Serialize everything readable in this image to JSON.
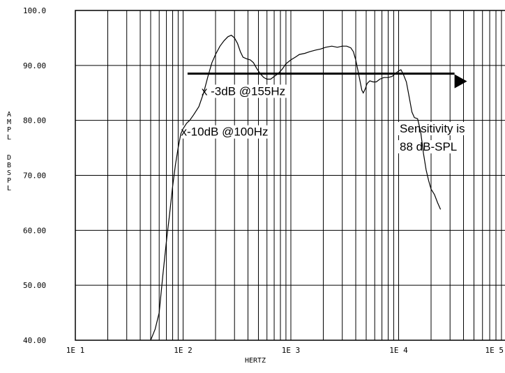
{
  "chart_data": {
    "type": "line",
    "xlabel": "HERTZ",
    "ylabel_lines": [
      "AMPL",
      "DBSPL"
    ],
    "x_scale": "log",
    "xlim": [
      10,
      100000
    ],
    "ylim": [
      40,
      100
    ],
    "grid": true,
    "x_tick_labels": [
      {
        "value": 10,
        "label": "1E 1"
      },
      {
        "value": 100,
        "label": "1E 2"
      },
      {
        "value": 1000,
        "label": "1E 3"
      },
      {
        "value": 10000,
        "label": "1E 4"
      },
      {
        "value": 100000,
        "label": "1E 5"
      }
    ],
    "y_tick_labels": [
      {
        "value": 100,
        "label": "100.0"
      },
      {
        "value": 90,
        "label": "90.00"
      },
      {
        "value": 80,
        "label": "80.00"
      },
      {
        "value": 70,
        "label": "70.00"
      },
      {
        "value": 60,
        "label": "60.00"
      },
      {
        "value": 50,
        "label": "50.00"
      },
      {
        "value": 40,
        "label": "40.00"
      }
    ],
    "series": [
      {
        "color": "#000000",
        "points": [
          [
            50,
            40
          ],
          [
            55,
            42
          ],
          [
            60,
            45
          ],
          [
            65,
            52
          ],
          [
            70,
            58
          ],
          [
            75,
            63
          ],
          [
            80,
            68
          ],
          [
            85,
            72
          ],
          [
            90,
            75
          ],
          [
            95,
            77.5
          ],
          [
            100,
            78.5
          ],
          [
            108,
            79.5
          ],
          [
            115,
            80
          ],
          [
            125,
            81
          ],
          [
            140,
            82.5
          ],
          [
            155,
            85
          ],
          [
            170,
            88
          ],
          [
            185,
            90.5
          ],
          [
            200,
            92
          ],
          [
            220,
            93.5
          ],
          [
            240,
            94.5
          ],
          [
            260,
            95.2
          ],
          [
            280,
            95.5
          ],
          [
            300,
            95
          ],
          [
            320,
            94
          ],
          [
            340,
            92.5
          ],
          [
            360,
            91.5
          ],
          [
            390,
            91.2
          ],
          [
            420,
            91
          ],
          [
            450,
            90.5
          ],
          [
            480,
            89.5
          ],
          [
            520,
            88.5
          ],
          [
            560,
            87.8
          ],
          [
            600,
            87.5
          ],
          [
            650,
            87.5
          ],
          [
            700,
            88
          ],
          [
            760,
            88.5
          ],
          [
            830,
            89.3
          ],
          [
            900,
            90.3
          ],
          [
            1000,
            91
          ],
          [
            1100,
            91.5
          ],
          [
            1200,
            92
          ],
          [
            1350,
            92.2
          ],
          [
            1500,
            92.5
          ],
          [
            1700,
            92.8
          ],
          [
            1900,
            93
          ],
          [
            2100,
            93.3
          ],
          [
            2400,
            93.5
          ],
          [
            2700,
            93.3
          ],
          [
            3000,
            93.5
          ],
          [
            3300,
            93.5
          ],
          [
            3600,
            93.2
          ],
          [
            3800,
            92.5
          ],
          [
            4000,
            91
          ],
          [
            4200,
            89
          ],
          [
            4400,
            87
          ],
          [
            4550,
            85.5
          ],
          [
            4700,
            85
          ],
          [
            4900,
            85.7
          ],
          [
            5100,
            86.7
          ],
          [
            5400,
            87.2
          ],
          [
            5800,
            87
          ],
          [
            6200,
            87
          ],
          [
            6700,
            87.5
          ],
          [
            7300,
            87.8
          ],
          [
            8000,
            87.8
          ],
          [
            8700,
            88
          ],
          [
            9300,
            88.5
          ],
          [
            10000,
            89
          ],
          [
            10500,
            89.2
          ],
          [
            11000,
            88.5
          ],
          [
            11800,
            87
          ],
          [
            12600,
            84
          ],
          [
            13300,
            81.5
          ],
          [
            14000,
            80.5
          ],
          [
            15000,
            80.3
          ],
          [
            16000,
            78
          ],
          [
            17000,
            74
          ],
          [
            18000,
            71
          ],
          [
            19000,
            69
          ],
          [
            20000,
            67.5
          ],
          [
            21500,
            66.5
          ],
          [
            23000,
            65
          ],
          [
            24500,
            63.8
          ]
        ]
      }
    ],
    "reference_arrow": {
      "y": 88.5,
      "x_start": 110,
      "x_end": 33000
    },
    "annotations": [
      {
        "text": "x -3dB @155Hz",
        "x": 155,
        "y": 84.6
      },
      {
        "text": "x-10dB @100Hz",
        "x": 100,
        "y": 77.2
      },
      {
        "text": "Sensitivity is",
        "x": 10700,
        "y": 77.8
      },
      {
        "text": "88 dB-SPL",
        "x": 10700,
        "y": 74.5
      }
    ]
  }
}
